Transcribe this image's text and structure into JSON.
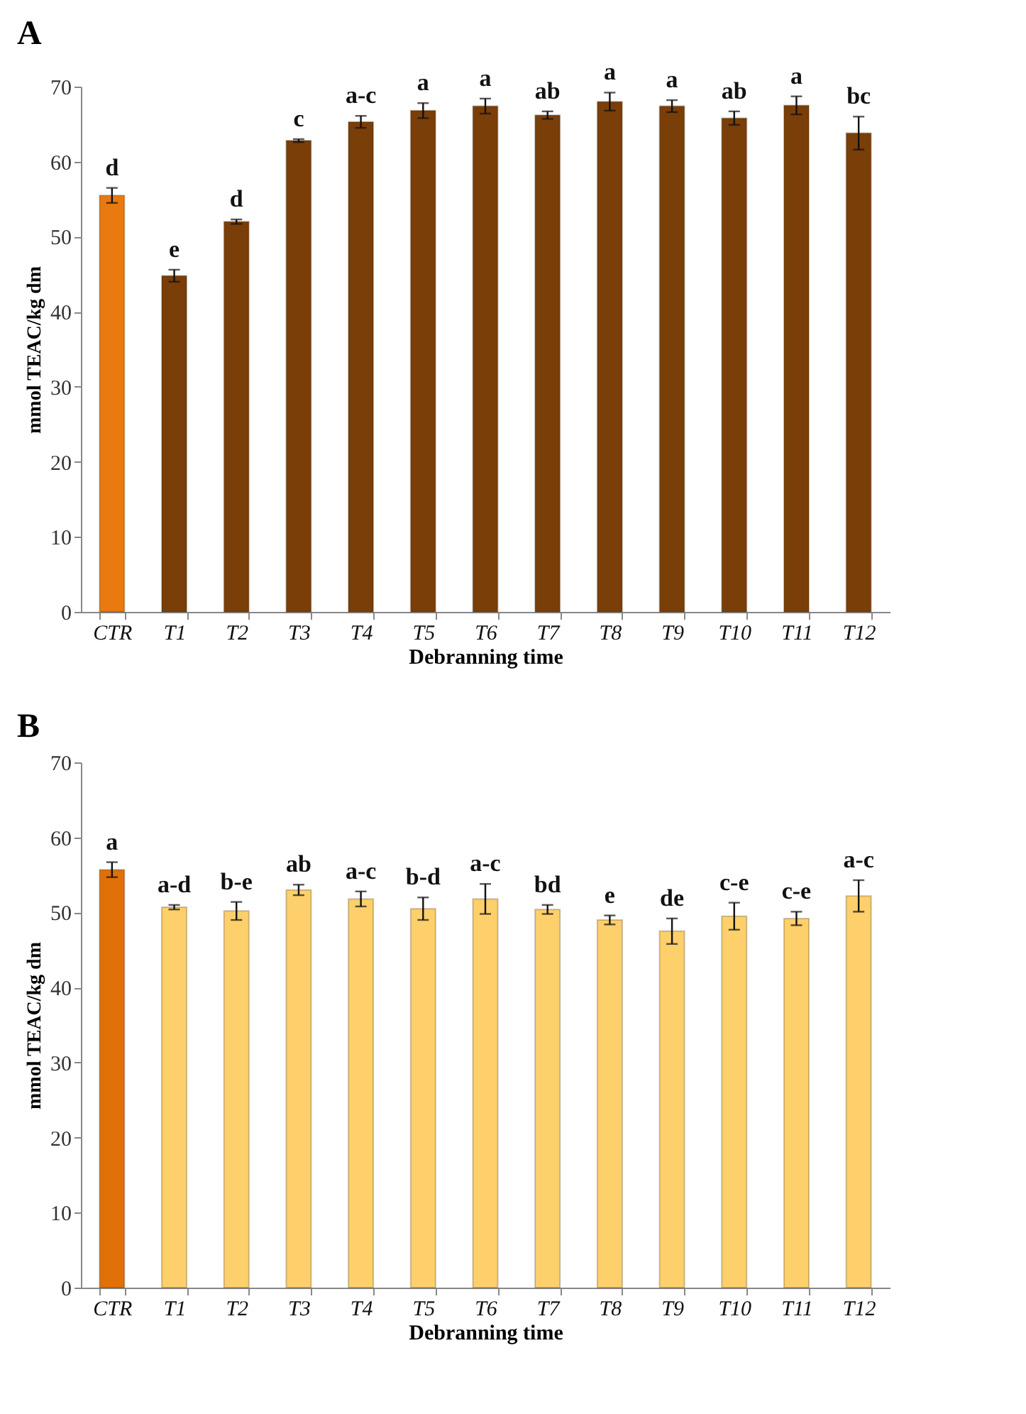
{
  "chart_data": [
    {
      "type": "bar",
      "title": "A",
      "xlabel": "Debranning time",
      "ylabel": "mmol TEAC/kg dm",
      "categories": [
        "CTR",
        "T1",
        "T2",
        "T3",
        "T4",
        "T5",
        "T6",
        "T7",
        "T8",
        "T9",
        "T10",
        "T11",
        "T12"
      ],
      "values": [
        55.5,
        44.8,
        52,
        62.8,
        65.3,
        66.8,
        67.4,
        66.2,
        68,
        67.4,
        65.8,
        67.5,
        63.8
      ],
      "errors": [
        1,
        0.8,
        0.3,
        0.2,
        0.8,
        1,
        1,
        0.5,
        1.2,
        0.8,
        0.9,
        1.2,
        2.2
      ],
      "colors": [
        "#e87a10",
        "#7a3e08",
        "#7a3e08",
        "#7a3e08",
        "#7a3e08",
        "#7a3e08",
        "#7a3e08",
        "#7a3e08",
        "#7a3e08",
        "#7a3e08",
        "#7a3e08",
        "#7a3e08",
        "#7a3e08"
      ],
      "value_labels": [
        "d",
        "e",
        "d",
        "c",
        "a-c",
        "a",
        "a",
        "ab",
        "a",
        "a",
        "ab",
        "a",
        "bc"
      ],
      "ylim": [
        0,
        70
      ],
      "yticks": [
        0,
        10,
        20,
        30,
        40,
        50,
        60,
        70
      ]
    },
    {
      "type": "bar",
      "title": "B",
      "xlabel": "Debranning time",
      "ylabel": "mmol TEAC/kg dm",
      "categories": [
        "CTR",
        "T1",
        "T2",
        "T3",
        "T4",
        "T5",
        "T6",
        "T7",
        "T8",
        "T9",
        "T10",
        "T11",
        "T12"
      ],
      "values": [
        55.7,
        50.7,
        50.2,
        53,
        51.8,
        50.5,
        51.8,
        50.4,
        49,
        47.5,
        49.5,
        49.2,
        52.2
      ],
      "errors": [
        1,
        0.3,
        1.2,
        0.7,
        1,
        1.5,
        2,
        0.6,
        0.6,
        1.7,
        1.8,
        0.9,
        2.1
      ],
      "colors": [
        "#e07008",
        "#fdd06b",
        "#fdd06b",
        "#fdd06b",
        "#fdd06b",
        "#fdd06b",
        "#fdd06b",
        "#fdd06b",
        "#fdd06b",
        "#fdd06b",
        "#fdd06b",
        "#fdd06b",
        "#fdd06b"
      ],
      "value_labels": [
        "a",
        "a-d",
        "b-e",
        "ab",
        "a-c",
        "b-d",
        "a-c",
        "bd",
        "e",
        "de",
        "c-e",
        "c-e",
        "a-c"
      ],
      "ylim": [
        0,
        70
      ],
      "yticks": [
        0,
        10,
        20,
        30,
        40,
        50,
        60,
        70
      ]
    }
  ]
}
